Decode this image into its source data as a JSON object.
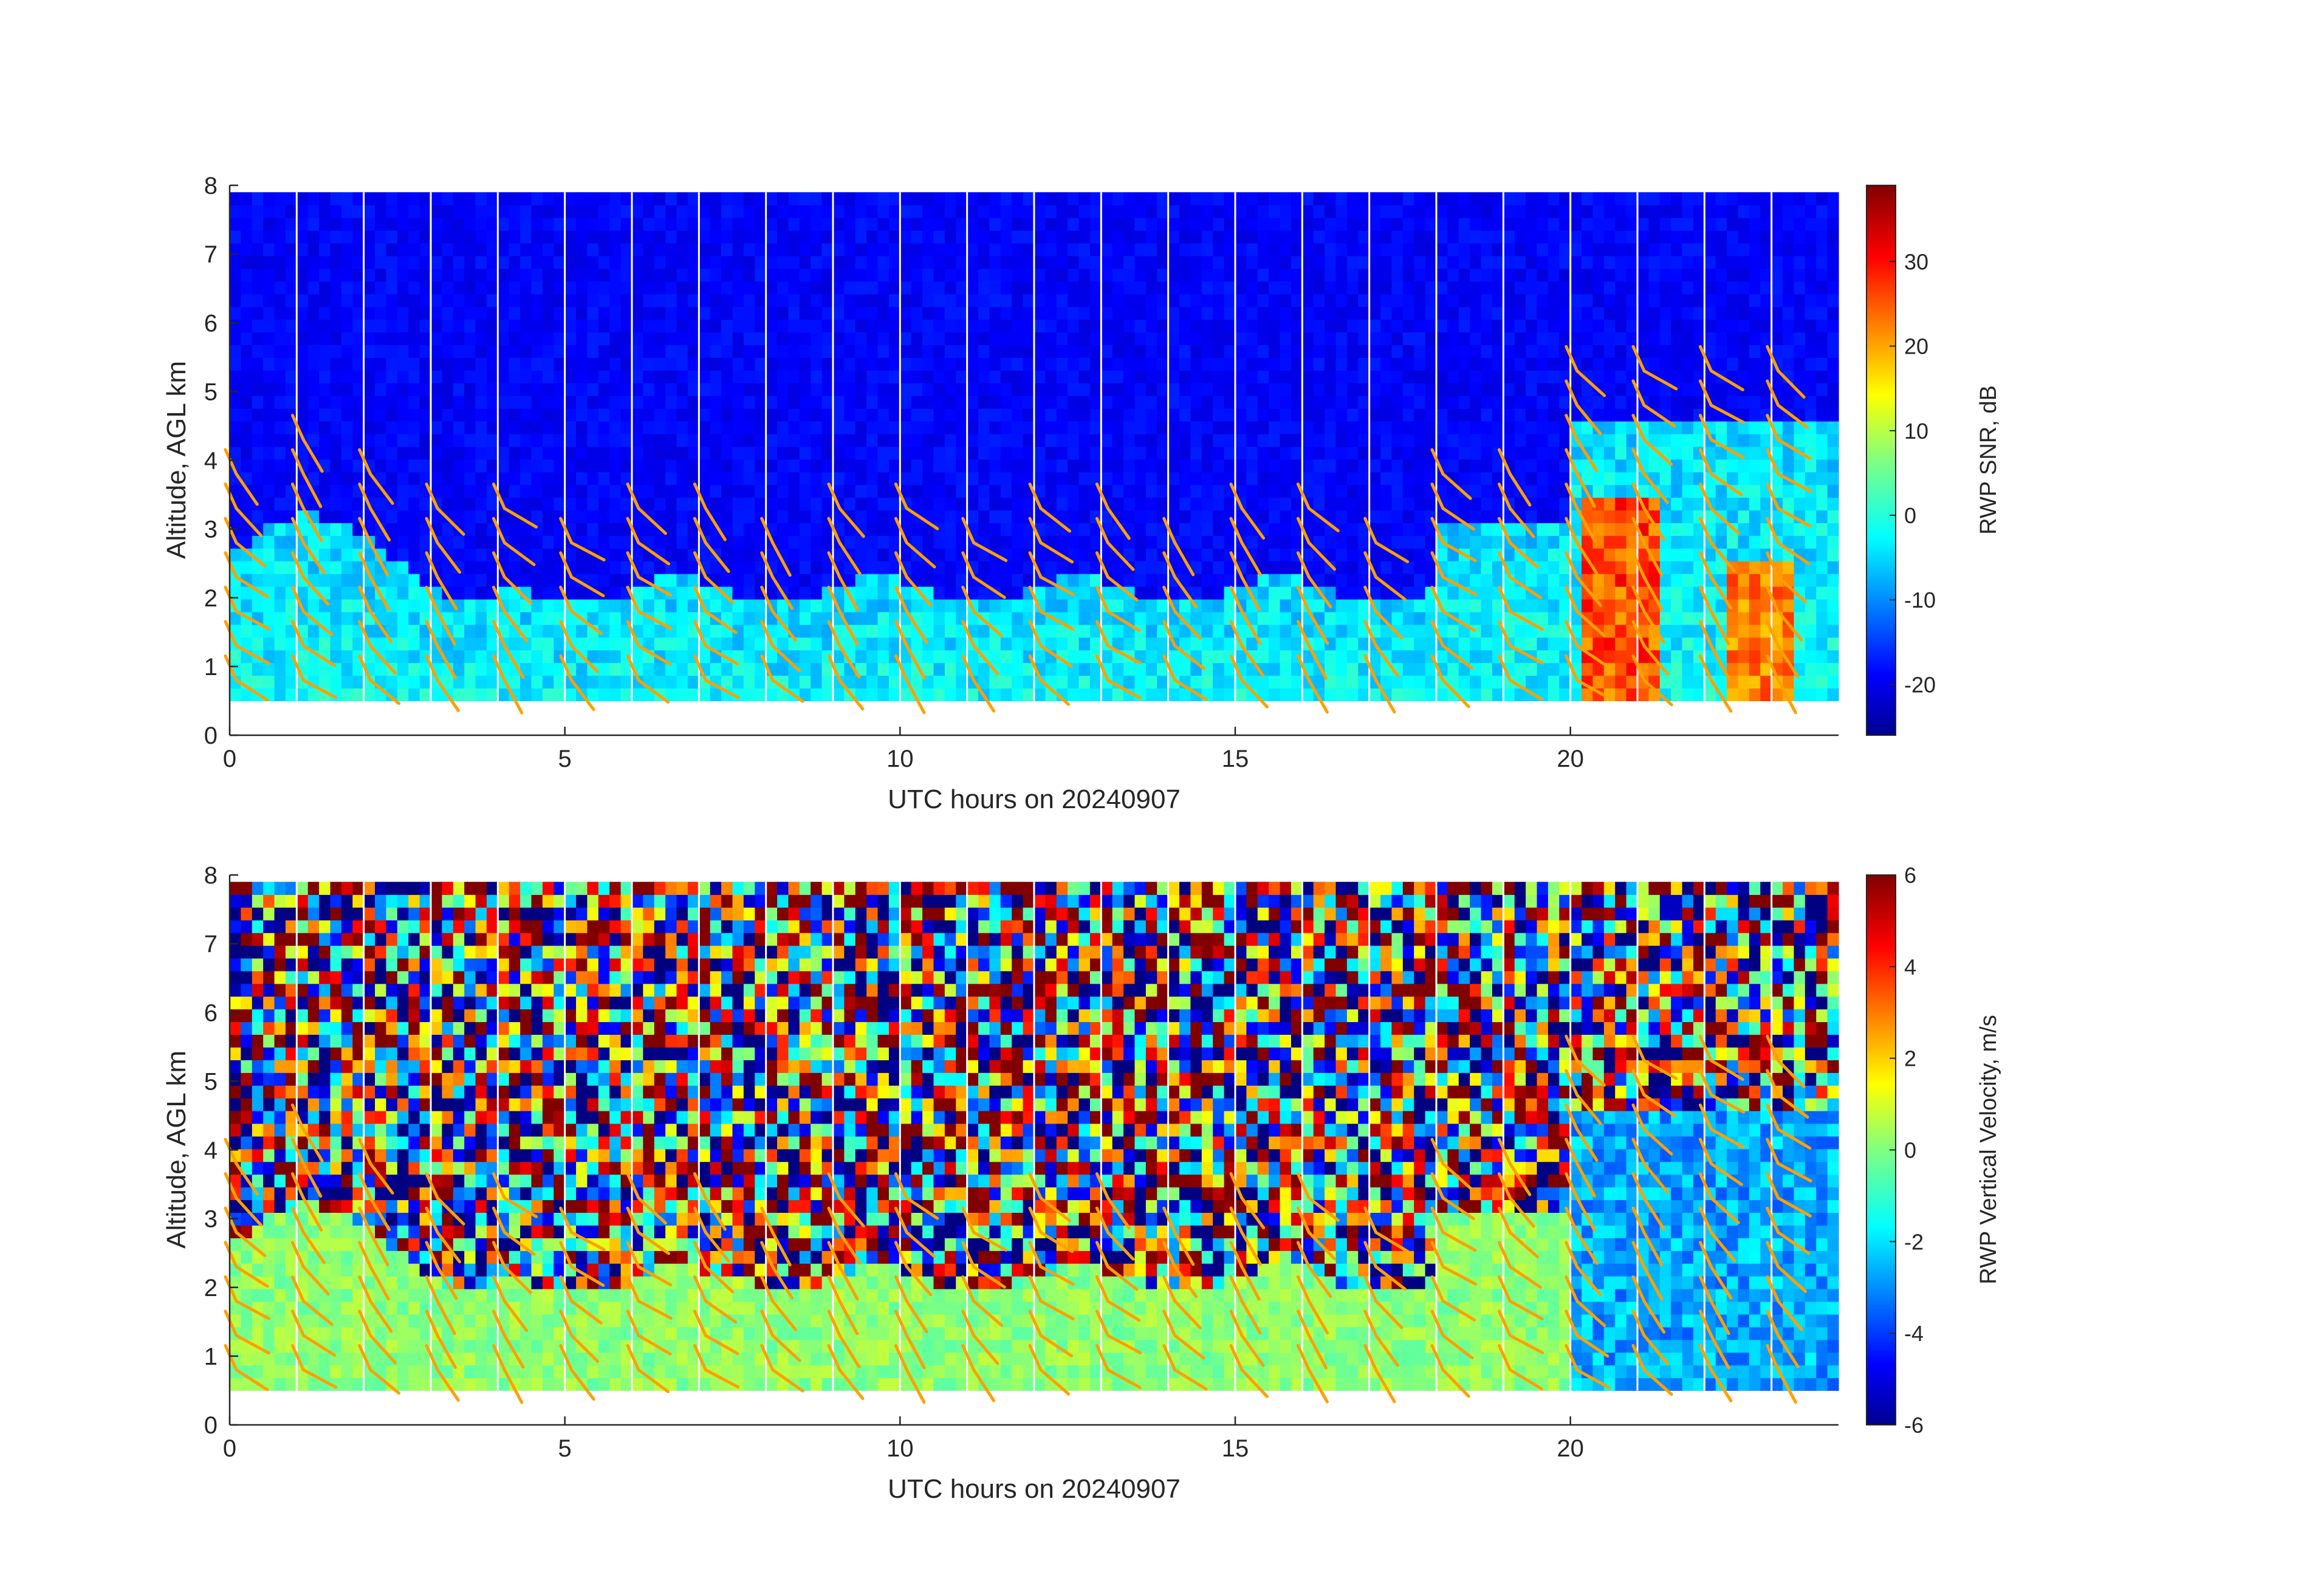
{
  "chart_data": [
    {
      "type": "heatmap",
      "xlabel": "UTC hours on 20240907",
      "ylabel": "Altitude, AGL km",
      "xlim": [
        0,
        24
      ],
      "ylim": [
        0,
        8
      ],
      "x_ticks": [
        0,
        5,
        10,
        15,
        20
      ],
      "y_ticks": [
        0,
        1,
        2,
        3,
        4,
        5,
        6,
        7,
        8
      ],
      "colorbar": {
        "label": "RWP SNR, dB",
        "range": [
          -26,
          39
        ],
        "ticks": [
          -20,
          -10,
          0,
          10,
          20,
          30
        ],
        "colormap": "jet"
      },
      "data_coverage": {
        "min_altitude_km": 0.5,
        "max_altitude_km": 7.9
      },
      "overlay": "wind barbs (orange)",
      "overlay_color": "#ffa000",
      "overlay_times_h": [
        0.1,
        1.1,
        2.1,
        3.1,
        4.1,
        5.1,
        6.1,
        7.1,
        8.1,
        9.1,
        10.1,
        11.1,
        12.1,
        13.1,
        14.1,
        15.1,
        16.1,
        17.1,
        18.1,
        19.1,
        20.1,
        21.1,
        22.1,
        23.1
      ]
    },
    {
      "type": "heatmap",
      "xlabel": "UTC hours on 20240907",
      "ylabel": "Altitude, AGL km",
      "xlim": [
        0,
        24
      ],
      "ylim": [
        0,
        8
      ],
      "x_ticks": [
        0,
        5,
        10,
        15,
        20
      ],
      "y_ticks": [
        0,
        1,
        2,
        3,
        4,
        5,
        6,
        7,
        8
      ],
      "colorbar": {
        "label": "RWP Vertical Velocity, m/s",
        "range": [
          -6,
          6
        ],
        "ticks": [
          -6,
          -4,
          -2,
          0,
          2,
          4,
          6
        ],
        "colormap": "jet"
      },
      "data_coverage": {
        "min_altitude_km": 0.5,
        "max_altitude_km": 7.9
      },
      "overlay": "wind barbs (orange)",
      "overlay_color": "#ffa000",
      "overlay_times_h": [
        0.1,
        1.1,
        2.1,
        3.1,
        4.1,
        5.1,
        6.1,
        7.1,
        8.1,
        9.1,
        10.1,
        11.1,
        12.1,
        13.1,
        14.1,
        15.1,
        16.1,
        17.1,
        18.1,
        19.1,
        20.1,
        21.1,
        22.1,
        23.1
      ]
    }
  ]
}
